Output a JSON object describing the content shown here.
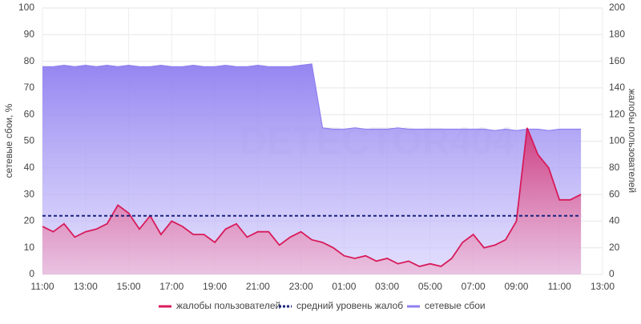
{
  "chart_data": {
    "type": "area",
    "watermark": "DETECTOR404",
    "ylabel": "сетевые сбои, %",
    "y2label": "жалобы пользователей",
    "x": [
      11,
      11.5,
      12,
      12.5,
      13,
      13.5,
      14,
      14.5,
      15,
      15.5,
      16,
      16.5,
      17,
      17.5,
      18,
      18.5,
      19,
      19.5,
      20,
      20.5,
      21,
      21.5,
      22,
      22.5,
      23,
      23.5,
      24,
      24.5,
      25,
      25.5,
      26,
      26.5,
      27,
      27.5,
      28,
      28.5,
      29,
      29.5,
      30,
      30.5,
      31,
      31.5,
      32,
      32.5,
      33,
      33.5,
      34,
      34.5,
      35,
      35.5,
      36
    ],
    "xlim": [
      11,
      37
    ],
    "xticks": [
      {
        "value": 11,
        "label": "11:00"
      },
      {
        "value": 13,
        "label": "13:00"
      },
      {
        "value": 15,
        "label": "15:00"
      },
      {
        "value": 17,
        "label": "17:00"
      },
      {
        "value": 19,
        "label": "19:00"
      },
      {
        "value": 21,
        "label": "21:00"
      },
      {
        "value": 23,
        "label": "23:00"
      },
      {
        "value": 25,
        "label": "01:00"
      },
      {
        "value": 27,
        "label": "03:00"
      },
      {
        "value": 29,
        "label": "05:00"
      },
      {
        "value": 31,
        "label": "07:00"
      },
      {
        "value": 33,
        "label": "09:00"
      },
      {
        "value": 35,
        "label": "11:00"
      },
      {
        "value": 37,
        "label": "13:00"
      }
    ],
    "ylim": [
      0,
      100
    ],
    "yticks": [
      0,
      10,
      20,
      30,
      40,
      50,
      60,
      70,
      80,
      90,
      100
    ],
    "y2lim": [
      0,
      200
    ],
    "y2ticks": [
      0,
      20,
      40,
      60,
      80,
      100,
      120,
      140,
      160,
      180,
      200
    ],
    "grid": true,
    "legend": "bottom",
    "series": [
      {
        "name": "жалобы пользователей",
        "color": "#d81b5a",
        "axis": "y2",
        "values": [
          36,
          32,
          38,
          28,
          32,
          34,
          38,
          52,
          46,
          34,
          44,
          30,
          40,
          36,
          30,
          30,
          24,
          34,
          38,
          28,
          32,
          32,
          22,
          28,
          32,
          26,
          24,
          20,
          14,
          12,
          14,
          10,
          12,
          8,
          10,
          6,
          8,
          6,
          12,
          24,
          30,
          20,
          22,
          26,
          40,
          110,
          90,
          80,
          56,
          56,
          60
        ]
      },
      {
        "name": "средний уровень жалоб",
        "color": "#1a237e",
        "axis": "y2",
        "style": "dashed",
        "value": 44
      },
      {
        "name": "сетевые сбои",
        "color": "#8f7ff0",
        "axis": "y",
        "values": [
          78,
          78,
          78.5,
          78,
          78.5,
          78,
          78.5,
          78,
          78.5,
          78,
          78,
          78.5,
          78,
          78,
          78.5,
          78,
          78,
          78.5,
          78,
          78,
          78.5,
          78,
          78,
          78,
          78.5,
          79,
          55,
          54.5,
          54.5,
          55,
          54.5,
          54.5,
          54.5,
          55,
          54.5,
          54.5,
          54.5,
          54.5,
          54.5,
          54.5,
          54.5,
          54.5,
          54,
          54.5,
          54,
          54.5,
          54.5,
          54,
          54.5,
          54.5,
          54.5
        ]
      }
    ]
  }
}
